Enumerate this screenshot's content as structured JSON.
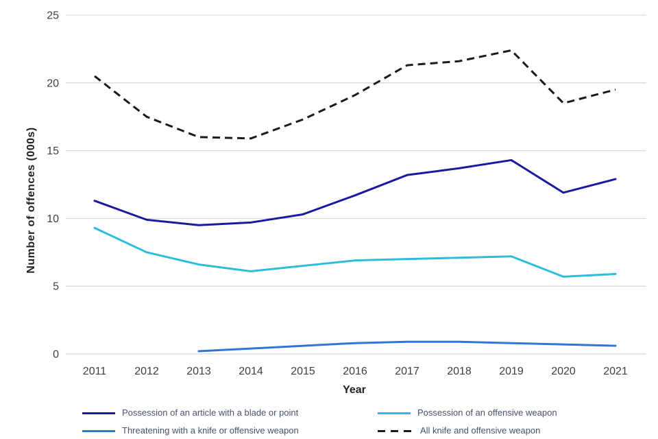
{
  "chart_data": {
    "type": "line",
    "title": "",
    "xlabel": "Year",
    "ylabel": "Number of offences (000s)",
    "categories": [
      "2011",
      "2012",
      "2013",
      "2014",
      "2015",
      "2016",
      "2017",
      "2018",
      "2019",
      "2020",
      "2021"
    ],
    "ylim": [
      0,
      25
    ],
    "yticks": [
      0,
      5,
      10,
      15,
      20,
      25
    ],
    "grid": "horizontal",
    "legend_position": "bottom",
    "series": [
      {
        "name": "Possession of an article with a blade or point",
        "color": "#1a1aa0",
        "dash": "solid",
        "values": [
          11.3,
          9.9,
          9.5,
          9.7,
          10.3,
          11.7,
          13.2,
          13.7,
          14.3,
          11.9,
          12.9
        ]
      },
      {
        "name": "Possession of an offensive weapon",
        "color": "#2cbcdc",
        "dash": "solid",
        "values": [
          9.3,
          7.5,
          6.6,
          6.1,
          6.5,
          6.9,
          7.0,
          7.1,
          7.2,
          5.7,
          5.9
        ]
      },
      {
        "name": "Threatening with a knife or offensive weapon",
        "color": "#2e75d6",
        "dash": "solid",
        "values": [
          null,
          null,
          0.2,
          0.4,
          0.6,
          0.8,
          0.9,
          0.9,
          0.8,
          0.7,
          0.6
        ]
      },
      {
        "name": "All knife and offensive weapon",
        "color": "#1a1a1a",
        "dash": "dashed",
        "values": [
          20.5,
          17.5,
          16.0,
          15.9,
          17.3,
          19.1,
          21.3,
          21.6,
          22.4,
          18.5,
          19.5
        ]
      }
    ],
    "colors": {
      "gridline": "#d9d9d9",
      "tick_text": "#3f3f3f",
      "axis_title_text": "#1f1f1f",
      "legend_text": "#44546a"
    }
  }
}
